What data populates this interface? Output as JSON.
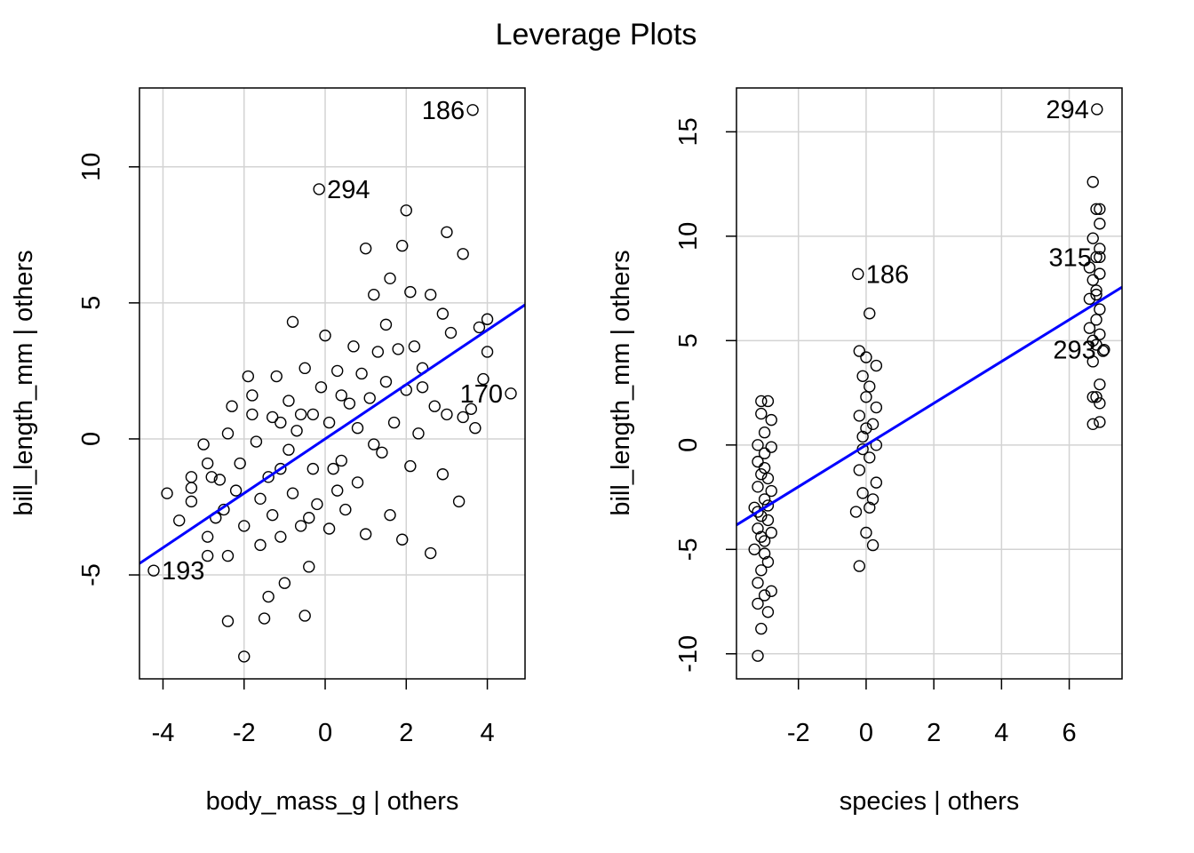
{
  "title": "Leverage Plots",
  "chart_data": [
    {
      "type": "scatter",
      "xlabel": "body_mass_g | others",
      "ylabel": "bill_length_mm  | others",
      "xlim": [
        -4.58,
        4.93
      ],
      "ylim": [
        -8.82,
        12.9
      ],
      "xticks": [
        -4,
        -2,
        0,
        2,
        4
      ],
      "yticks": [
        -5,
        0,
        5,
        10
      ],
      "grid": true,
      "fit_line": {
        "slope": 1.0,
        "intercept": 0.0,
        "color": "#0000FF"
      },
      "labeled_points": [
        {
          "label": "186",
          "x": 3.64,
          "y": 12.09
        },
        {
          "label": "294",
          "x": -0.15,
          "y": 9.18
        },
        {
          "label": "170",
          "x": 4.58,
          "y": 1.67
        },
        {
          "label": "193",
          "x": -4.23,
          "y": -4.84
        }
      ],
      "points": [
        [
          -3.9,
          -2
        ],
        [
          -3.6,
          -3
        ],
        [
          -3.3,
          -1.8
        ],
        [
          -3.3,
          -2.3
        ],
        [
          -3.0,
          -0.2
        ],
        [
          -2.9,
          -0.9
        ],
        [
          -2.8,
          -1.4
        ],
        [
          -2.9,
          -3.6
        ],
        [
          -2.9,
          -4.3
        ],
        [
          -2.6,
          -1.5
        ],
        [
          -2.5,
          -2.6
        ],
        [
          -2.4,
          -4.3
        ],
        [
          -2.4,
          -6.7
        ],
        [
          -2.4,
          0.2
        ],
        [
          -2.3,
          1.2
        ],
        [
          -2.1,
          -0.9
        ],
        [
          -2,
          -3.2
        ],
        [
          -2,
          -8
        ],
        [
          -1.9,
          2.3
        ],
        [
          -1.8,
          1.6
        ],
        [
          -1.8,
          0.9
        ],
        [
          -1.7,
          -0.1
        ],
        [
          -1.6,
          -2.2
        ],
        [
          -1.6,
          -3.9
        ],
        [
          -1.5,
          -6.6
        ],
        [
          -1.4,
          -5.8
        ],
        [
          -1.4,
          -1.4
        ],
        [
          -1.3,
          0.8
        ],
        [
          -1.2,
          2.3
        ],
        [
          -1.1,
          -1.1
        ],
        [
          -1.1,
          -3.6
        ],
        [
          -1,
          -5.3
        ],
        [
          -0.9,
          1.4
        ],
        [
          -0.9,
          -0.4
        ],
        [
          -0.8,
          4.3
        ],
        [
          -0.8,
          -2
        ],
        [
          -0.7,
          0.3
        ],
        [
          -0.6,
          -3.2
        ],
        [
          -0.5,
          -6.5
        ],
        [
          -0.5,
          2.6
        ],
        [
          -0.4,
          -4.7
        ],
        [
          -0.3,
          -1.1
        ],
        [
          -0.3,
          0.9
        ],
        [
          -0.2,
          -2.4
        ],
        [
          -0.1,
          1.9
        ],
        [
          0,
          3.8
        ],
        [
          0.1,
          0.6
        ],
        [
          0.1,
          -3.3
        ],
        [
          0.2,
          -1.1
        ],
        [
          0.3,
          2.5
        ],
        [
          0.4,
          -0.8
        ],
        [
          0.5,
          -2.6
        ],
        [
          0.6,
          1.3
        ],
        [
          0.7,
          3.4
        ],
        [
          0.8,
          -1.6
        ],
        [
          0.8,
          0.4
        ],
        [
          0.9,
          2.4
        ],
        [
          1,
          -3.5
        ],
        [
          1,
          7
        ],
        [
          1.1,
          1.5
        ],
        [
          1.2,
          5.3
        ],
        [
          1.3,
          3.2
        ],
        [
          1.4,
          -0.5
        ],
        [
          1.5,
          2.1
        ],
        [
          1.6,
          5.9
        ],
        [
          1.6,
          -2.8
        ],
        [
          1.7,
          0.6
        ],
        [
          1.8,
          3.3
        ],
        [
          1.9,
          7.1
        ],
        [
          1.9,
          -3.7
        ],
        [
          2,
          8.4
        ],
        [
          2,
          1.8
        ],
        [
          2.1,
          5.4
        ],
        [
          2.1,
          -1
        ],
        [
          2.2,
          3.4
        ],
        [
          2.3,
          0.2
        ],
        [
          2.4,
          2.6
        ],
        [
          2.6,
          5.3
        ],
        [
          2.6,
          -4.2
        ],
        [
          2.7,
          1.2
        ],
        [
          2.9,
          4.6
        ],
        [
          2.9,
          -1.3
        ],
        [
          3,
          7.6
        ],
        [
          3,
          0.9
        ],
        [
          3.1,
          3.9
        ],
        [
          3.3,
          -2.3
        ],
        [
          3.4,
          6.8
        ],
        [
          3.4,
          0.8
        ],
        [
          3.6,
          1.1
        ],
        [
          3.7,
          0.4
        ],
        [
          3.8,
          4.1
        ],
        [
          3.9,
          2.2
        ],
        [
          4,
          4.4
        ],
        [
          4,
          3.2
        ],
        [
          -3.3,
          -1.4
        ],
        [
          -2.7,
          -2.9
        ],
        [
          -2.2,
          -1.9
        ],
        [
          -1.3,
          -2.8
        ],
        [
          -0.6,
          0.9
        ],
        [
          0.4,
          1.6
        ],
        [
          1.2,
          -0.2
        ],
        [
          1.5,
          4.2
        ],
        [
          2.4,
          1.9
        ],
        [
          -1.1,
          0.6
        ],
        [
          0.3,
          -1.9
        ],
        [
          -0.4,
          -2.9
        ]
      ]
    },
    {
      "type": "scatter",
      "xlabel": "species | others",
      "ylabel": "bill_length_mm  | others",
      "xlim": [
        -3.83,
        7.56
      ],
      "ylim": [
        -11.2,
        17.1
      ],
      "xticks": [
        -2,
        0,
        2,
        4,
        6
      ],
      "yticks": [
        -10,
        -5,
        0,
        5,
        10,
        15
      ],
      "grid": true,
      "fit_line": {
        "slope": 1.0,
        "intercept": 0.0,
        "color": "#0000FF"
      },
      "labeled_points": [
        {
          "label": "294",
          "x": 6.82,
          "y": 16.08
        },
        {
          "label": "186",
          "x": -0.24,
          "y": 8.19
        },
        {
          "label": "315",
          "x": 6.9,
          "y": 9.0
        },
        {
          "label": "293",
          "x": 7.03,
          "y": 4.56
        }
      ],
      "points": [
        [
          -3.2,
          -10.1
        ],
        [
          -3.1,
          -8.8
        ],
        [
          -3.2,
          -7.6
        ],
        [
          -2.9,
          -8
        ],
        [
          -3,
          -7.2
        ],
        [
          -3.2,
          -6.6
        ],
        [
          -2.8,
          -7
        ],
        [
          -3.1,
          -6
        ],
        [
          -2.9,
          -5.6
        ],
        [
          -3.3,
          -5
        ],
        [
          -3,
          -4.6
        ],
        [
          -2.8,
          -4.2
        ],
        [
          -3.2,
          -4
        ],
        [
          -3.1,
          -3.4
        ],
        [
          -2.9,
          -3.6
        ],
        [
          -3.3,
          -3
        ],
        [
          -3,
          -2.6
        ],
        [
          -2.8,
          -2.2
        ],
        [
          -3.2,
          -2
        ],
        [
          -3.1,
          -1.4
        ],
        [
          -2.9,
          -1.6
        ],
        [
          -3.2,
          -0.8
        ],
        [
          -3,
          -0.4
        ],
        [
          -2.8,
          -0.1
        ],
        [
          -3.2,
          0
        ],
        [
          -3,
          0.6
        ],
        [
          -2.8,
          1.2
        ],
        [
          -3.1,
          1.5
        ],
        [
          -3.1,
          2.1
        ],
        [
          -2.9,
          2.1
        ],
        [
          -3,
          -5.2
        ],
        [
          -3.1,
          -4.4
        ],
        [
          -2.9,
          -2.9
        ],
        [
          -3,
          -1.1
        ],
        [
          -3.2,
          -3.2
        ],
        [
          -0.2,
          -5.8
        ],
        [
          0.2,
          -4.8
        ],
        [
          0,
          -4.2
        ],
        [
          -0.3,
          -3.2
        ],
        [
          0.1,
          -3
        ],
        [
          -0.1,
          -2.3
        ],
        [
          0.3,
          -1.8
        ],
        [
          -0.2,
          -1.2
        ],
        [
          0.1,
          -0.6
        ],
        [
          0.3,
          0
        ],
        [
          -0.1,
          0.4
        ],
        [
          0.2,
          1
        ],
        [
          -0.2,
          1.4
        ],
        [
          0.3,
          1.8
        ],
        [
          0,
          2.3
        ],
        [
          0.1,
          2.8
        ],
        [
          -0.1,
          3.3
        ],
        [
          0.3,
          3.8
        ],
        [
          -0.2,
          4.5
        ],
        [
          0,
          4.2
        ],
        [
          0.1,
          6.3
        ],
        [
          -0.1,
          -0.2
        ],
        [
          0.2,
          -2.6
        ],
        [
          0,
          0.8
        ],
        [
          6.7,
          1
        ],
        [
          6.9,
          1.1
        ],
        [
          6.8,
          2.3
        ],
        [
          6.9,
          2
        ],
        [
          6.7,
          2.3
        ],
        [
          6.9,
          2.9
        ],
        [
          6.7,
          4
        ],
        [
          7,
          4.5
        ],
        [
          6.8,
          4.8
        ],
        [
          6.9,
          5.3
        ],
        [
          6.6,
          5.6
        ],
        [
          6.8,
          6
        ],
        [
          6.9,
          6.5
        ],
        [
          6.6,
          7
        ],
        [
          6.8,
          7.4
        ],
        [
          6.7,
          7.9
        ],
        [
          6.9,
          8.2
        ],
        [
          6.6,
          8.5
        ],
        [
          6.8,
          9
        ],
        [
          6.9,
          9.4
        ],
        [
          6.7,
          9.9
        ],
        [
          6.9,
          10.6
        ],
        [
          6.8,
          11.3
        ],
        [
          6.9,
          11.3
        ],
        [
          6.7,
          12.6
        ],
        [
          6.8,
          7.2
        ],
        [
          6.7,
          5
        ]
      ]
    }
  ]
}
